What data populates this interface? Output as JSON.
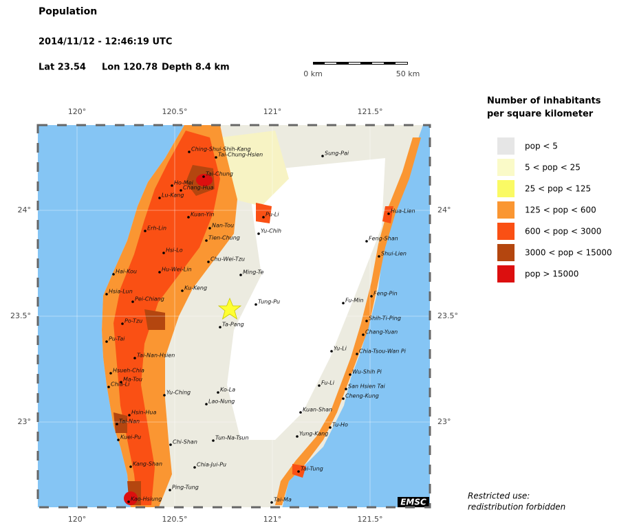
{
  "header": {
    "title": "Population",
    "datetime": "2014/11/12 - 12:46:19 UTC",
    "lat": "Lat 23.54",
    "lon": "Lon 120.78",
    "depth": "Depth  8.4 km"
  },
  "scale_bar": {
    "start": "0 km",
    "end": "50 km"
  },
  "lon_ticks": [
    {
      "value": 120,
      "label": "120°"
    },
    {
      "value": 120.5,
      "label": "120.5°"
    },
    {
      "value": 121,
      "label": "121°"
    },
    {
      "value": 121.5,
      "label": "121.5°"
    }
  ],
  "lat_ticks": [
    {
      "value": 24,
      "label": "24°"
    },
    {
      "value": 23.5,
      "label": "23.5°"
    },
    {
      "value": 23,
      "label": "23°"
    }
  ],
  "cities": [
    "Ching-Shui-Shih-Kang",
    "Tai-Chung-Hsien",
    "Sung-Pai",
    "Tai-Chung",
    "Ho-Mei",
    "Chang-Hua",
    "Lu-Kang",
    "Hua-Lien",
    "Pu-Li",
    "Kuan-Yin",
    "Nan-Tou",
    "Yu-Chih",
    "Erh-Lin",
    "Tien-Chung",
    "Feng-Shan",
    "Hsi-Lo",
    "Shui-Lien",
    "Chu-Wei-Tzu",
    "Hai-Kou",
    "Hu-Wei-Lin",
    "Ming-Te",
    "Ku-Keng",
    "Hsia-Lun",
    "Feng-Pin",
    "Pei-Chiang",
    "Tung-Pu",
    "Fu-Min",
    "Po-Tzu",
    "Shih-Ti-Ping",
    "Ta-Pang",
    "Chang-Yuan",
    "Pu-Tai",
    "Yu-Li",
    "Chia-Tsou-Wan Pi",
    "Tai-Nan-Hsien",
    "Wu-Shih Pi",
    "Hsueh-Chia",
    "Ma-Tou",
    "Chia-Li",
    "Fu-Li",
    "San Hsien Tai",
    "Ko-La",
    "Yu-Ching",
    "Cheng-Kung",
    "Lao-Nung",
    "Kuan-Shan",
    "Hsin-Hua",
    "Tai-Nan",
    "Tu-Ho",
    "Yung-Kang",
    "Kuei-Pu",
    "Chi-Shan",
    "Tun-Na-Tsun",
    "Kang-Shan",
    "Chia-Jui-Pu",
    "Tai-Tung",
    "Ping-Tung",
    "Kao-Hsiung",
    "Tai-Ma"
  ],
  "legend": {
    "title_line1": "Number of inhabitants",
    "title_line2": "per square kilometer",
    "items": [
      {
        "label": "pop < 5",
        "color": "#e6e6e6"
      },
      {
        "label": "5 < pop < 25",
        "color": "#fafac8"
      },
      {
        "label": "25 < pop < 125",
        "color": "#fafa64"
      },
      {
        "label": "125 < pop < 600",
        "color": "#fa9632"
      },
      {
        "label": "600 < pop < 3000",
        "color": "#fa5014"
      },
      {
        "label": "3000 < pop < 15000",
        "color": "#b4460f"
      },
      {
        "label": "pop > 15000",
        "color": "#dc0f0f"
      }
    ]
  },
  "logo": "EMSC",
  "note_line1": "Restricted use:",
  "note_line2": "redistribution forbidden"
}
